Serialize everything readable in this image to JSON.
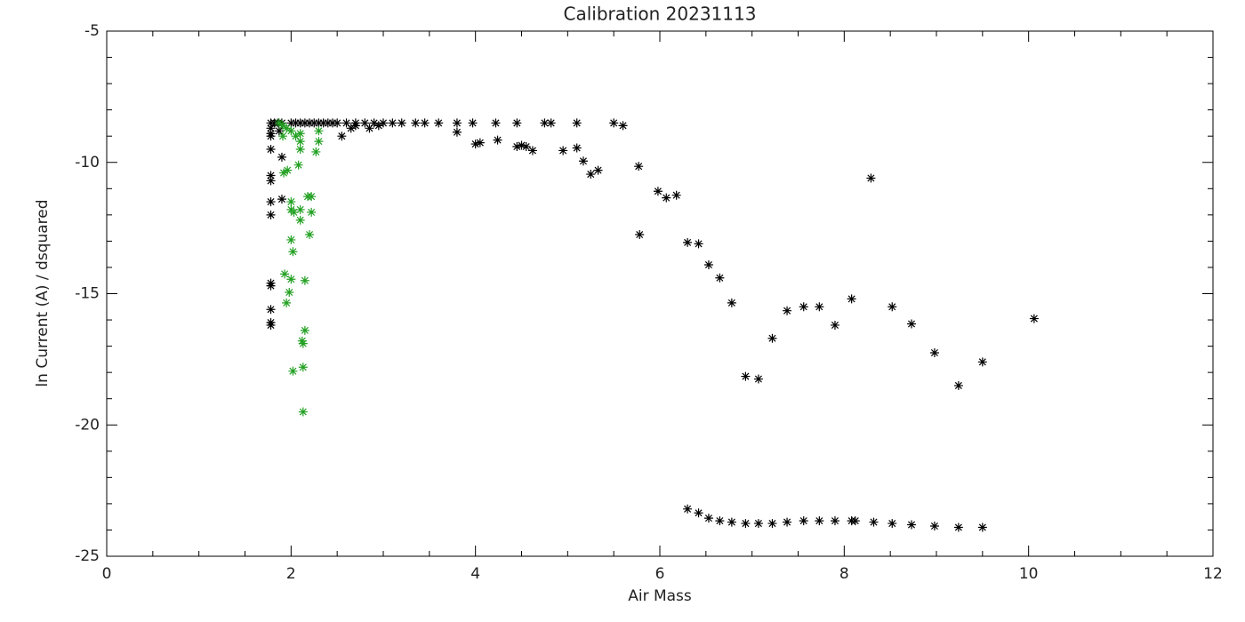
{
  "chart_data": {
    "type": "scatter",
    "title": "Calibration 20231113",
    "x_label": "Air Mass",
    "y_label": "ln Current (A) / dsquared",
    "xlim": [
      0,
      12
    ],
    "xticks": [
      0,
      2,
      4,
      6,
      8,
      10,
      12
    ],
    "ylim": [
      -25,
      -5
    ],
    "yticks": [
      -25,
      -20,
      -15,
      -10,
      -5
    ],
    "marker": "asterisk",
    "series": [
      {
        "color": "#000000",
        "x": [
          1.78,
          1.78,
          1.78,
          1.78,
          1.78,
          1.78,
          1.78,
          1.78,
          1.78,
          1.78,
          1.78,
          1.78,
          1.78,
          1.78,
          1.82,
          1.86,
          1.9,
          1.87,
          1.9,
          1.9,
          2.0,
          2.05,
          2.1,
          2.15,
          2.2,
          2.25,
          2.3,
          2.35,
          2.4,
          2.45,
          2.5,
          2.6,
          2.7,
          2.8,
          2.9,
          3.0,
          3.1,
          3.2,
          3.35,
          3.45,
          3.6,
          3.8,
          3.97,
          4.22,
          4.45,
          4.75,
          4.82,
          5.1,
          5.5,
          2.55,
          2.65,
          2.7,
          2.85,
          2.95,
          3.8,
          4.0,
          4.05,
          4.24,
          4.45,
          4.5,
          4.55,
          4.62,
          4.95,
          5.1,
          5.17,
          5.25,
          5.33,
          5.6,
          5.77,
          5.78,
          5.98,
          6.07,
          6.18,
          6.3,
          6.42,
          6.53,
          6.65,
          6.78,
          6.93,
          7.07,
          7.22,
          7.38,
          7.56,
          7.73,
          7.9,
          8.08,
          8.29,
          8.52,
          8.73,
          8.98,
          9.24,
          9.5,
          10.06,
          6.3,
          6.42,
          6.53,
          6.65,
          6.78,
          6.93,
          7.07,
          7.22,
          7.38,
          7.56,
          7.73,
          7.9,
          8.08,
          8.12,
          8.32,
          8.52,
          8.73,
          8.98,
          9.24,
          9.5
        ],
        "values": [
          -8.5,
          -8.7,
          -8.9,
          -9.0,
          -9.5,
          -10.5,
          -10.7,
          -11.5,
          -12.0,
          -14.6,
          -14.7,
          -15.6,
          -16.1,
          -16.2,
          -8.5,
          -8.5,
          -8.5,
          -8.8,
          -9.8,
          -11.4,
          -8.5,
          -8.5,
          -8.5,
          -8.5,
          -8.5,
          -8.5,
          -8.5,
          -8.5,
          -8.5,
          -8.5,
          -8.5,
          -8.5,
          -8.5,
          -8.5,
          -8.5,
          -8.5,
          -8.5,
          -8.5,
          -8.5,
          -8.5,
          -8.5,
          -8.5,
          -8.5,
          -8.5,
          -8.5,
          -8.5,
          -8.5,
          -8.5,
          -8.5,
          -9.0,
          -8.7,
          -8.6,
          -8.7,
          -8.6,
          -8.85,
          -9.3,
          -9.25,
          -9.15,
          -9.4,
          -9.35,
          -9.4,
          -9.55,
          -9.55,
          -9.45,
          -9.95,
          -10.45,
          -10.3,
          -8.6,
          -10.15,
          -12.75,
          -11.1,
          -11.35,
          -11.25,
          -13.05,
          -13.1,
          -13.9,
          -14.4,
          -15.35,
          -18.15,
          -18.25,
          -16.7,
          -15.65,
          -15.5,
          -15.5,
          -16.2,
          -15.2,
          -10.6,
          -15.5,
          -16.15,
          -17.25,
          -18.5,
          -17.6,
          -15.95,
          -23.2,
          -23.35,
          -23.55,
          -23.65,
          -23.7,
          -23.75,
          -23.75,
          -23.75,
          -23.7,
          -23.65,
          -23.65,
          -23.65,
          -23.65,
          -23.65,
          -23.7,
          -23.75,
          -23.8,
          -23.85,
          -23.9,
          -23.9
        ]
      },
      {
        "color": "#22a022",
        "x": [
          1.87,
          1.91,
          1.91,
          1.95,
          2.0,
          2.05,
          2.1,
          2.1,
          2.1,
          2.3,
          2.3,
          2.27,
          2.08,
          1.96,
          1.92,
          2.0,
          2.0,
          2.03,
          2.1,
          2.1,
          2.18,
          2.22,
          2.22,
          2.2,
          2.0,
          2.02,
          1.93,
          2.0,
          2.15,
          1.95,
          1.98,
          2.15,
          2.12,
          2.13,
          2.13,
          2.02,
          2.13
        ],
        "values": [
          -8.5,
          -8.6,
          -9.0,
          -8.7,
          -8.8,
          -9.0,
          -8.9,
          -9.2,
          -9.5,
          -8.8,
          -9.2,
          -9.6,
          -10.1,
          -10.3,
          -10.4,
          -11.5,
          -11.8,
          -11.9,
          -11.8,
          -12.2,
          -11.3,
          -11.3,
          -11.9,
          -12.75,
          -12.95,
          -13.4,
          -14.25,
          -14.45,
          -14.5,
          -15.35,
          -14.95,
          -16.4,
          -16.8,
          -16.9,
          -17.8,
          -17.95,
          -19.5
        ]
      }
    ]
  }
}
